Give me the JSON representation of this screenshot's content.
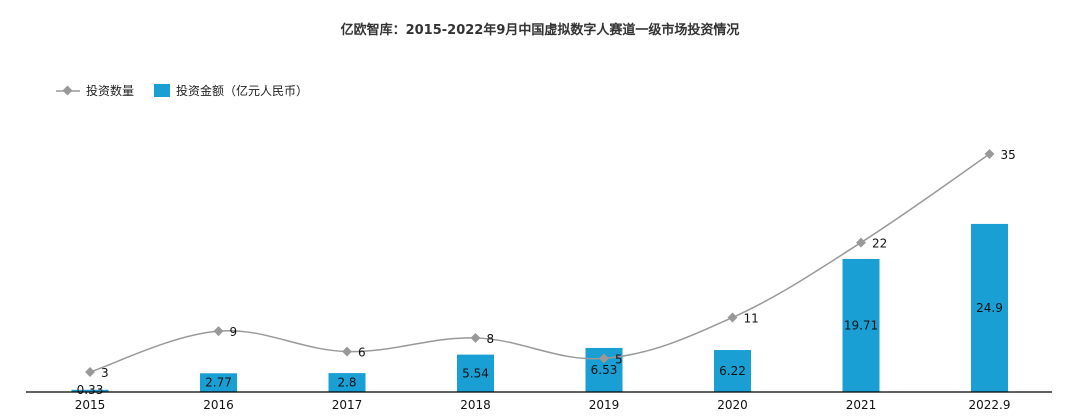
{
  "chart_data": {
    "type": "bar",
    "title": "亿欧智库：2015-2022年9月中国虚拟数字人赛道一级市场投资情况",
    "categories": [
      "2015",
      "2016",
      "2017",
      "2018",
      "2019",
      "2020",
      "2021",
      "2022.9"
    ],
    "series": [
      {
        "name": "投资金额（亿元人民币）",
        "type": "bar",
        "values": [
          0.33,
          2.77,
          2.8,
          5.54,
          6.53,
          6.22,
          19.71,
          24.9
        ],
        "labels": [
          "0.33",
          "2.77",
          "2.8",
          "5.54",
          "6.53",
          "6.22",
          "19.71",
          "24.9"
        ],
        "color": "#1a9fd4"
      },
      {
        "name": "投资数量",
        "type": "line",
        "values": [
          3,
          9,
          6,
          8,
          5,
          11,
          22,
          35
        ],
        "labels": [
          "3",
          "9",
          "6",
          "8",
          "5",
          "11",
          "22",
          "35"
        ],
        "color": "#999999"
      }
    ],
    "legend": "top-left",
    "grid": false,
    "axis_color": "#000000"
  }
}
